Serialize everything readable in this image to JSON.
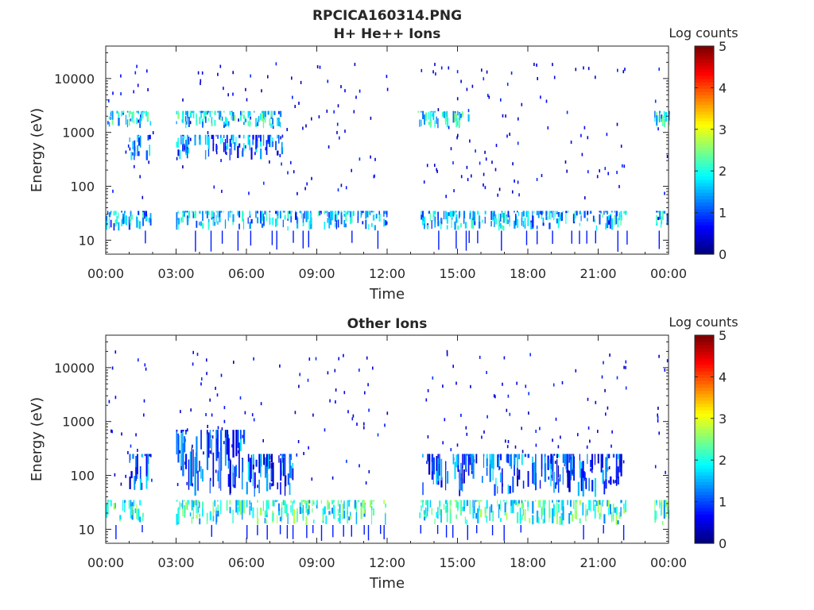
{
  "figure_title": "RPCICA160314.PNG",
  "chart_data": [
    {
      "type": "heatmap",
      "title": "H+ He++ Ions",
      "xlabel": "Time",
      "ylabel": "Energy (eV)",
      "xticks": [
        "00:00",
        "03:00",
        "06:00",
        "09:00",
        "12:00",
        "15:00",
        "18:00",
        "21:00",
        "00:00"
      ],
      "xlim_hours": [
        0,
        24
      ],
      "yscale": "log",
      "ylim": [
        5.5,
        40000
      ],
      "yticks": [
        "10",
        "100",
        "1000",
        "10000"
      ],
      "colorbar_label": "Log counts",
      "colorbar_ticks": [
        "0",
        "1",
        "2",
        "3",
        "4",
        "5"
      ],
      "colorbar_range": [
        0,
        5
      ],
      "colormap": "jet",
      "data_gaps_hours": [
        [
          2.0,
          3.0
        ],
        [
          12.0,
          13.3
        ],
        [
          22.2,
          23.4
        ]
      ],
      "bands": [
        {
          "energy_range_eV": [
            15,
            35
          ],
          "typical_log_counts": 1.5,
          "hours": [
            [
              0.0,
              1.9
            ],
            [
              3.0,
              12.0
            ],
            [
              13.3,
              22.2
            ],
            [
              23.4,
              24.0
            ]
          ]
        },
        {
          "energy_range_eV": [
            1200,
            2500
          ],
          "typical_log_counts": 1.8,
          "hours": [
            [
              0.0,
              1.9
            ],
            [
              3.0,
              7.5
            ],
            [
              13.3,
              15.5
            ],
            [
              23.4,
              24.0
            ]
          ]
        },
        {
          "energy_range_eV": [
            300,
            900
          ],
          "typical_log_counts": 1.2,
          "hours": [
            [
              1.0,
              1.9
            ],
            [
              3.0,
              7.5
            ]
          ]
        }
      ]
    },
    {
      "type": "heatmap",
      "title": "Other Ions",
      "xlabel": "Time",
      "ylabel": "Energy (eV)",
      "xticks": [
        "00:00",
        "03:00",
        "06:00",
        "09:00",
        "12:00",
        "15:00",
        "18:00",
        "21:00",
        "00:00"
      ],
      "xlim_hours": [
        0,
        24
      ],
      "yscale": "log",
      "ylim": [
        5.5,
        40000
      ],
      "yticks": [
        "10",
        "100",
        "1000",
        "10000"
      ],
      "colorbar_label": "Log counts",
      "colorbar_ticks": [
        "0",
        "1",
        "2",
        "3",
        "4",
        "5"
      ],
      "colorbar_range": [
        0,
        5
      ],
      "colormap": "jet",
      "data_gaps_hours": [
        [
          2.0,
          3.0
        ],
        [
          12.0,
          13.3
        ],
        [
          22.2,
          23.4
        ]
      ],
      "bands": [
        {
          "energy_range_eV": [
            12,
            35
          ],
          "typical_log_counts": 2.0,
          "hours": [
            [
              0.0,
              1.9
            ],
            [
              3.0,
              12.0
            ],
            [
              13.3,
              22.2
            ],
            [
              23.4,
              24.0
            ]
          ]
        },
        {
          "energy_range_eV": [
            40,
            700
          ],
          "typical_log_counts": 1.0,
          "hours": [
            [
              3.0,
              6.0
            ]
          ]
        },
        {
          "energy_range_eV": [
            40,
            250
          ],
          "typical_log_counts": 1.0,
          "hours": [
            [
              1.0,
              1.9
            ],
            [
              6.0,
              8.0
            ],
            [
              13.5,
              22.0
            ]
          ]
        }
      ]
    }
  ]
}
